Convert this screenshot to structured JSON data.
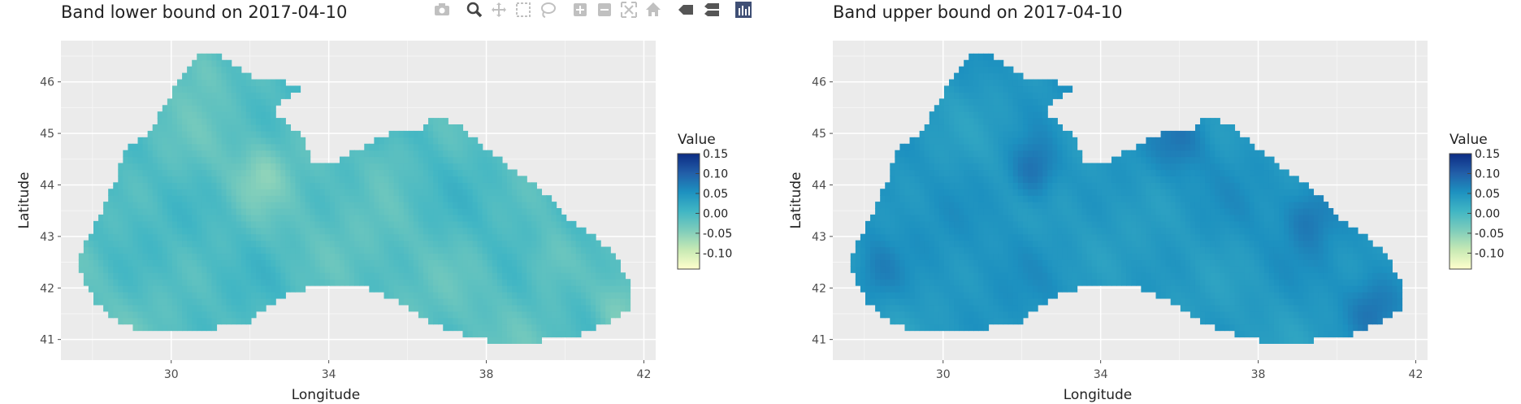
{
  "modebar": {
    "buttons": [
      {
        "name": "camera-icon",
        "active": false
      },
      {
        "name": "zoom-icon",
        "active": true
      },
      {
        "name": "pan-icon",
        "active": false
      },
      {
        "name": "box-select-icon",
        "active": false
      },
      {
        "name": "lasso-select-icon",
        "active": false
      },
      {
        "name": "zoom-in-icon",
        "active": false
      },
      {
        "name": "zoom-out-icon",
        "active": false
      },
      {
        "name": "autoscale-icon",
        "active": false
      },
      {
        "name": "home-icon",
        "active": false
      },
      {
        "name": "hover-closest-icon",
        "active": false
      },
      {
        "name": "hover-compare-icon",
        "active": false
      },
      {
        "name": "plotly-logo-icon",
        "active": false
      }
    ]
  },
  "chart_data": [
    {
      "type": "heatmap",
      "title": "Band lower bound on 2017-04-10",
      "xlabel": "Longitude",
      "ylabel": "Latitude",
      "xlim": [
        27.2,
        42.3
      ],
      "ylim": [
        40.6,
        46.8
      ],
      "xticks": [
        30,
        34,
        38,
        42
      ],
      "yticks": [
        41,
        42,
        43,
        44,
        45,
        46
      ],
      "legend_title": "Value",
      "colorbar": {
        "range": [
          -0.14,
          0.15
        ],
        "ticks": [
          0.15,
          0.1,
          0.05,
          0.0,
          -0.05,
          -0.1
        ],
        "tick_labels": [
          "0.15",
          "0.10",
          "0.05",
          "0.00",
          "-0.05",
          "-0.10"
        ]
      },
      "colorscale": [
        "#FFFFCC",
        "#C7E9B4",
        "#7FCDBB",
        "#41B6C4",
        "#1D91C0",
        "#225EA8",
        "#0C2C84"
      ],
      "grid": true,
      "base_value": -0.01,
      "variation": 0.025,
      "hotspots": [
        {
          "lon": 32.3,
          "lat": 44.2,
          "value": -0.04
        },
        {
          "lon": 30.8,
          "lat": 46.3,
          "value": -0.035
        },
        {
          "lon": 41.4,
          "lat": 41.6,
          "value": -0.05
        },
        {
          "lon": 39.6,
          "lat": 42.6,
          "value": -0.035
        },
        {
          "lon": 35.5,
          "lat": 44.6,
          "value": -0.03
        }
      ]
    },
    {
      "type": "heatmap",
      "title": "Band upper bound on 2017-04-10",
      "xlabel": "Longitude",
      "ylabel": "Latitude",
      "xlim": [
        27.2,
        42.3
      ],
      "ylim": [
        40.6,
        46.8
      ],
      "xticks": [
        30,
        34,
        38,
        42
      ],
      "yticks": [
        41,
        42,
        43,
        44,
        45,
        46
      ],
      "legend_title": "Value",
      "colorbar": {
        "range": [
          -0.14,
          0.15
        ],
        "ticks": [
          0.15,
          0.1,
          0.05,
          0.0,
          -0.05,
          -0.1
        ],
        "tick_labels": [
          "0.15",
          "0.10",
          "0.05",
          "0.00",
          "-0.05",
          "-0.10"
        ]
      },
      "colorscale": [
        "#FFFFCC",
        "#C7E9B4",
        "#7FCDBB",
        "#41B6C4",
        "#1D91C0",
        "#225EA8",
        "#0C2C84"
      ],
      "grid": true,
      "base_value": 0.045,
      "variation": 0.018,
      "hotspots": [
        {
          "lon": 32.3,
          "lat": 44.3,
          "value": 0.09
        },
        {
          "lon": 39.3,
          "lat": 43.4,
          "value": 0.075
        },
        {
          "lon": 40.9,
          "lat": 41.6,
          "value": 0.075
        },
        {
          "lon": 28.3,
          "lat": 42.3,
          "value": 0.07
        },
        {
          "lon": 36.0,
          "lat": 44.9,
          "value": 0.07
        }
      ]
    }
  ]
}
